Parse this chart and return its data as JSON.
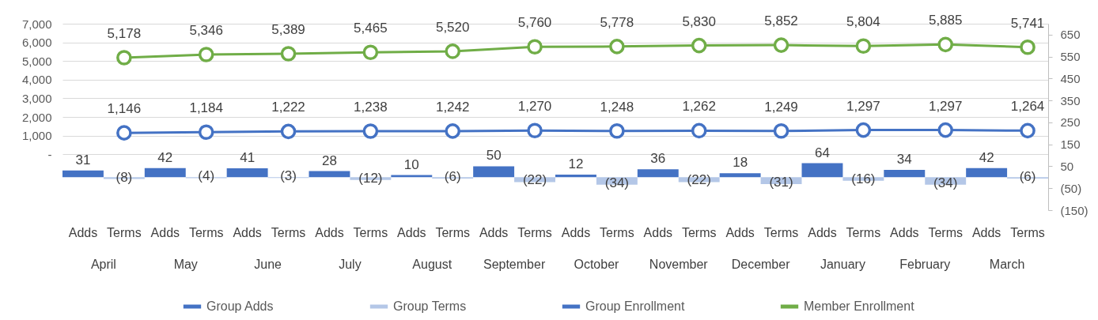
{
  "chart_data": {
    "type": "bar",
    "categories": [
      "April",
      "May",
      "June",
      "July",
      "August",
      "September",
      "October",
      "November",
      "December",
      "January",
      "February",
      "March"
    ],
    "annotations": [
      "Adds",
      "Terms"
    ],
    "series": [
      {
        "name": "Group Adds",
        "axis": "y2",
        "color": "#4472c4",
        "values": [
          31,
          42,
          41,
          28,
          10,
          50,
          12,
          36,
          18,
          64,
          34,
          42
        ],
        "value_labels": [
          "31",
          "42",
          "41",
          "28",
          "10",
          "50",
          "12",
          "36",
          "18",
          "64",
          "34",
          "42"
        ]
      },
      {
        "name": "Group Terms",
        "axis": "y2",
        "color": "#b4c7e7",
        "values": [
          -8,
          -4,
          -3,
          -12,
          -6,
          -22,
          -34,
          -22,
          -31,
          -16,
          -34,
          -6
        ],
        "value_labels": [
          "(8)",
          "(4)",
          "(3)",
          "(12)",
          "(6)",
          "(22)",
          "(34)",
          "(22)",
          "(31)",
          "(16)",
          "(34)",
          "(6)"
        ]
      },
      {
        "name": "Group Enrollment",
        "type": "line",
        "color": "#4472c4",
        "values": [
          1146,
          1184,
          1222,
          1238,
          1242,
          1270,
          1248,
          1262,
          1249,
          1297,
          1297,
          1264
        ],
        "value_labels": [
          "1,146",
          "1,184",
          "1,222",
          "1,238",
          "1,242",
          "1,270",
          "1,248",
          "1,262",
          "1,249",
          "1,297",
          "1,297",
          "1,264"
        ]
      },
      {
        "name": "Member Enrollment",
        "type": "line",
        "color": "#70ad47",
        "values": [
          5178,
          5346,
          5389,
          5465,
          5520,
          5760,
          5778,
          5830,
          5852,
          5804,
          5885,
          5741
        ],
        "value_labels": [
          "5,178",
          "5,346",
          "5,389",
          "5,465",
          "5,520",
          "5,760",
          "5,778",
          "5,830",
          "5,852",
          "5,804",
          "5,885",
          "5,741"
        ]
      }
    ],
    "ylim": [
      -3000,
      7000
    ],
    "yticks": [
      {
        "value": 0,
        "label": "-"
      },
      {
        "value": 1000,
        "label": "1,000"
      },
      {
        "value": 2000,
        "label": "2,000"
      },
      {
        "value": 3000,
        "label": "3,000"
      },
      {
        "value": 4000,
        "label": "4,000"
      },
      {
        "value": 5000,
        "label": "5,000"
      },
      {
        "value": 6000,
        "label": "6,000"
      },
      {
        "value": 7000,
        "label": "7,000"
      }
    ],
    "y2lim": [
      -150,
      700
    ],
    "y2ticks": [
      {
        "value": -150,
        "label": "(150)"
      },
      {
        "value": -50,
        "label": "(50)"
      },
      50,
      150,
      250,
      350,
      450,
      550,
      650
    ],
    "grid": "y",
    "legend": "bottom",
    "marker": "circle",
    "line_style": "solid"
  }
}
